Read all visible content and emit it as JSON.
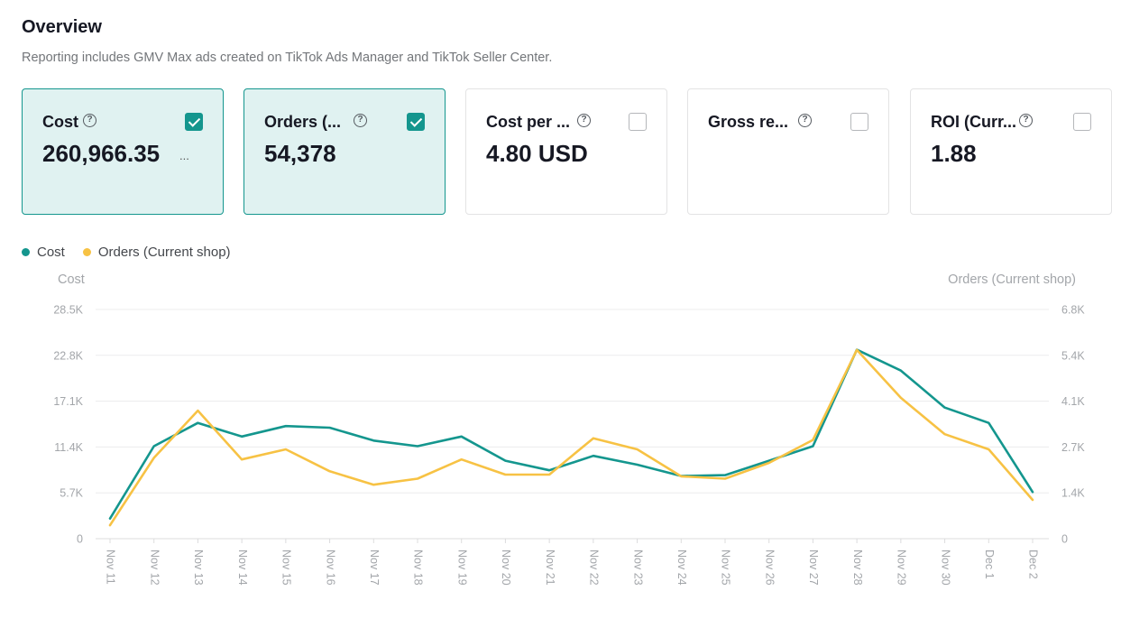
{
  "header": {
    "title": "Overview",
    "subtitle": "Reporting includes GMV Max ads created on TikTok Ads Manager and TikTok Seller Center."
  },
  "metrics": [
    {
      "label": "Cost",
      "value": "260,966.35",
      "value_suffix": "...",
      "checked": true
    },
    {
      "label": "Orders (...",
      "value": "54,378",
      "value_suffix": "",
      "checked": true
    },
    {
      "label": "Cost per ...",
      "value": "4.80 USD",
      "value_suffix": "",
      "checked": false
    },
    {
      "label": "Gross re...",
      "value": "",
      "value_suffix": "",
      "checked": false
    },
    {
      "label": "ROI (Curr...",
      "value": "1.88",
      "value_suffix": "",
      "checked": false
    }
  ],
  "legend": [
    {
      "name": "Cost",
      "color": "#14968e"
    },
    {
      "name": "Orders (Current shop)",
      "color": "#f7c244"
    }
  ],
  "colors": {
    "accent": "#14968e",
    "selected_bg": "#e0f2f1",
    "orders": "#f7c244"
  },
  "chart_data": {
    "type": "line",
    "left_axis_title": "Cost",
    "right_axis_title": "Orders (Current shop)",
    "x": [
      "Nov 11",
      "Nov 12",
      "Nov 13",
      "Nov 14",
      "Nov 15",
      "Nov 16",
      "Nov 17",
      "Nov 18",
      "Nov 19",
      "Nov 20",
      "Nov 21",
      "Nov 22",
      "Nov 23",
      "Nov 24",
      "Nov 25",
      "Nov 26",
      "Nov 27",
      "Nov 28",
      "Nov 29",
      "Nov 30",
      "Dec 1",
      "Dec 2"
    ],
    "y_left_ticks": [
      "0",
      "5.7K",
      "11.4K",
      "17.1K",
      "22.8K",
      "28.5K"
    ],
    "y_left_lim": [
      0,
      28500
    ],
    "y_right_ticks": [
      "0",
      "1.4K",
      "2.7K",
      "4.1K",
      "5.4K",
      "6.8K"
    ],
    "y_right_lim": [
      0,
      6800
    ],
    "grid": true,
    "series": [
      {
        "name": "Cost",
        "axis": "left",
        "color": "#14968e",
        "values": [
          2500,
          11500,
          14400,
          12700,
          14000,
          13800,
          12200,
          11500,
          12700,
          9700,
          8500,
          10300,
          9200,
          7800,
          7900,
          9700,
          11500,
          23500,
          20900,
          16300,
          14400,
          5800
        ]
      },
      {
        "name": "Orders (Current shop)",
        "axis": "right",
        "color": "#f7c244",
        "values": [
          400,
          2400,
          3800,
          2350,
          2650,
          2000,
          1600,
          1780,
          2350,
          1900,
          1900,
          2980,
          2650,
          1850,
          1780,
          2250,
          2930,
          5600,
          4180,
          3100,
          2650,
          1150
        ]
      }
    ]
  }
}
